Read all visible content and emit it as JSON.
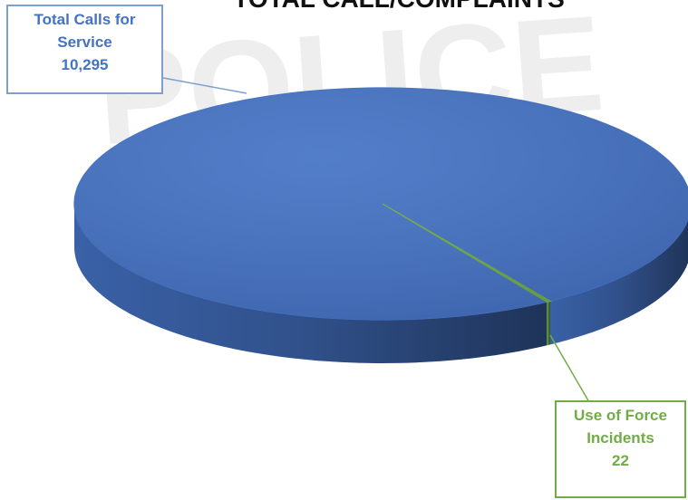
{
  "chart_data": {
    "type": "pie",
    "title": "TOTAL CALL/COMPLAINTS",
    "categories": [
      "Total Calls for Service",
      "Use of Force Incidents"
    ],
    "values": [
      10295,
      22
    ],
    "value_labels": [
      "10,295",
      "22"
    ],
    "colors": [
      "#4472c4",
      "#70ad47"
    ]
  }
}
